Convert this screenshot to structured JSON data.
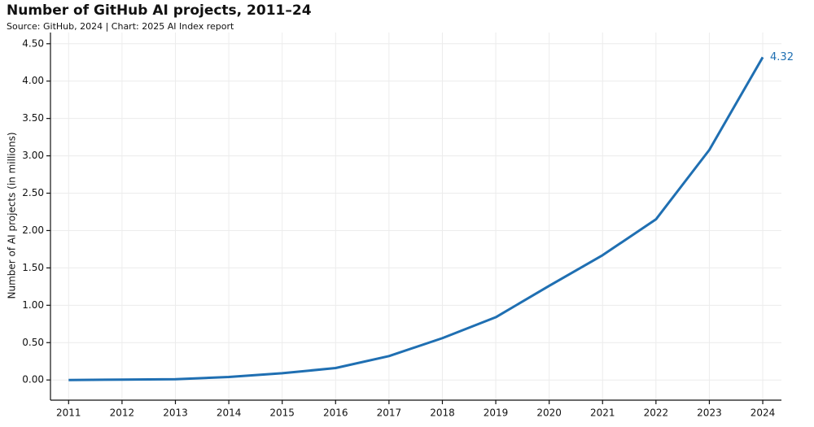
{
  "chart_data": {
    "type": "line",
    "title": "Number of GitHub AI projects, 2011–24",
    "subtitle": "Source: GitHub, 2024 | Chart: 2025 AI Index report",
    "y_label": "Number of AI projects (in millions)",
    "x": [
      2011,
      2012,
      2013,
      2014,
      2015,
      2016,
      2017,
      2018,
      2019,
      2020,
      2021,
      2022,
      2023,
      2024
    ],
    "series": [
      {
        "name": "GitHub AI projects",
        "color": "#1f6fb2",
        "values": [
          0.0,
          0.005,
          0.01,
          0.04,
          0.09,
          0.16,
          0.32,
          0.56,
          0.84,
          1.26,
          1.67,
          2.15,
          3.08,
          4.32
        ]
      }
    ],
    "xlim": [
      2010.66,
      2024.35
    ],
    "xticks": [
      2011,
      2012,
      2013,
      2014,
      2015,
      2016,
      2017,
      2018,
      2019,
      2020,
      2021,
      2022,
      2023,
      2024
    ],
    "ylim": [
      -0.27,
      4.65
    ],
    "yticks": [
      {
        "value": 0,
        "label": "0.00"
      },
      {
        "value": 0.5,
        "label": "0.50"
      },
      {
        "value": 1,
        "label": "1.00"
      },
      {
        "value": 1.5,
        "label": "1.50"
      },
      {
        "value": 2,
        "label": "2.00"
      },
      {
        "value": 2.5,
        "label": "2.50"
      },
      {
        "value": 3,
        "label": "3.00"
      },
      {
        "value": 3.5,
        "label": "3.50"
      },
      {
        "value": 4,
        "label": "4.00"
      },
      {
        "value": 4.5,
        "label": "4.50"
      }
    ],
    "grid": true
  }
}
